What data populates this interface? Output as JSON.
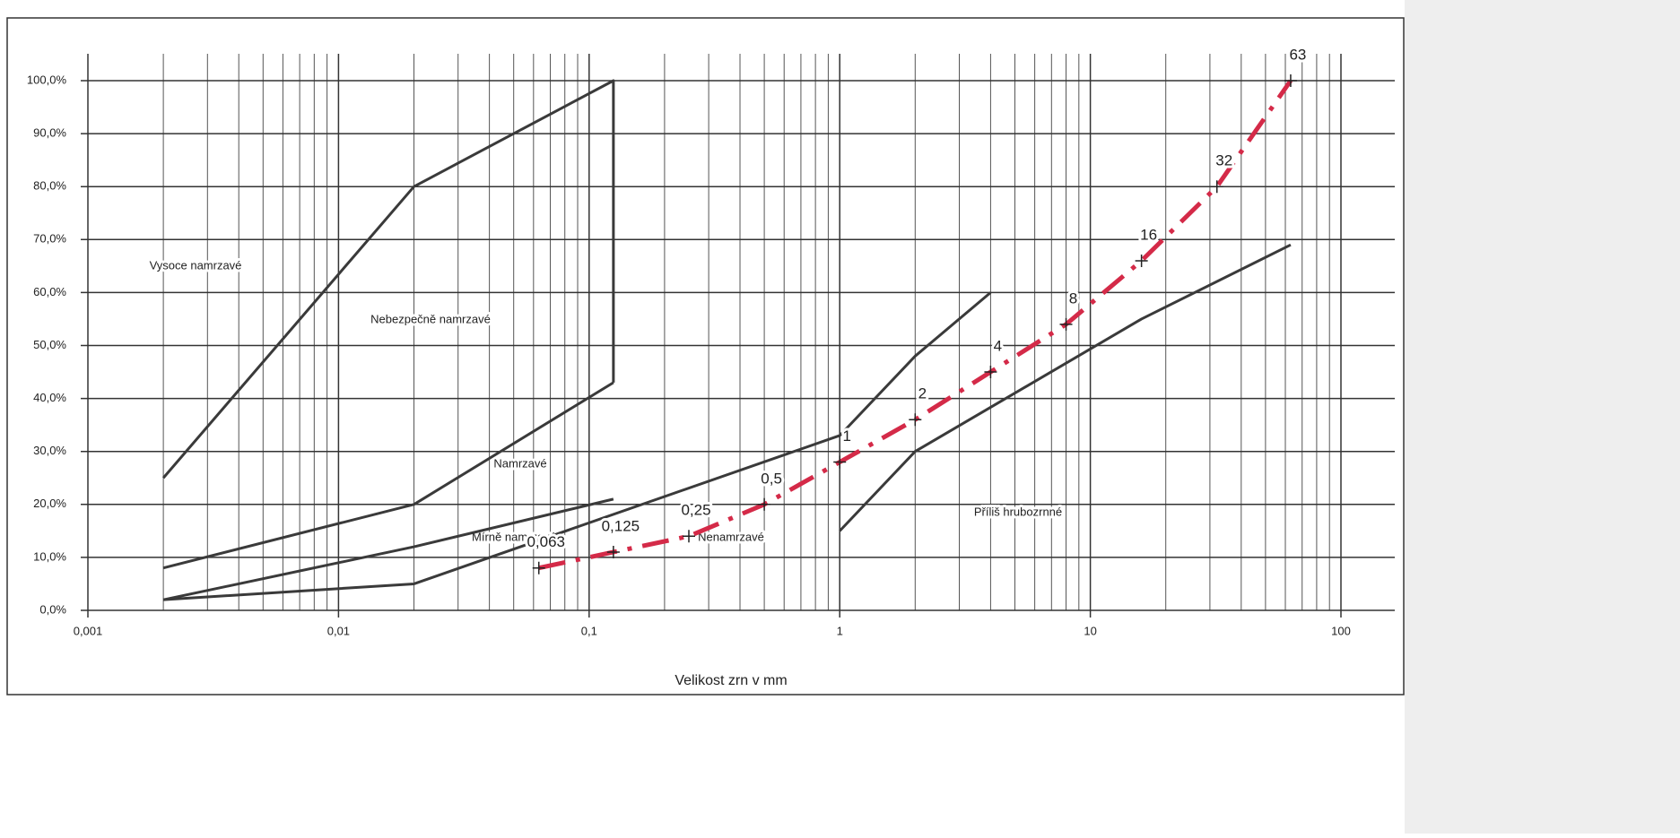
{
  "chart_data": {
    "type": "line",
    "xlabel": "Velikost zrn v mm",
    "xscale": "log",
    "xlim": [
      0.001,
      100
    ],
    "xticks": [
      {
        "value": 0.001,
        "label": "0,001"
      },
      {
        "value": 0.01,
        "label": "0,01"
      },
      {
        "value": 0.1,
        "label": "0,1"
      },
      1,
      10,
      100
    ],
    "ylim": [
      0,
      100
    ],
    "yticks": [
      {
        "value": 0,
        "label": "0,0%"
      },
      {
        "value": 10,
        "label": "10,0%"
      },
      {
        "value": 20,
        "label": "20,0%"
      },
      {
        "value": 30,
        "label": "30,0%"
      },
      {
        "value": 40,
        "label": "40,0%"
      },
      {
        "value": 50,
        "label": "50,0%"
      },
      {
        "value": 60,
        "label": "60,0%"
      },
      {
        "value": 70,
        "label": "70,0%"
      },
      {
        "value": 80,
        "label": "80,0%"
      },
      {
        "value": 90,
        "label": "90,0%"
      },
      {
        "value": 100,
        "label": "100,0%"
      }
    ],
    "grid": true,
    "minor_grid": true,
    "annotations": [
      "Vysoce namrzavé",
      "Nebezpečně namrzavé",
      "Namrzavé",
      "Mírně namrzavé",
      "Nenamrzavé",
      "Příliš hrubozrnné"
    ],
    "series": [
      {
        "color": "#3a3a3a",
        "style": "solid",
        "x": [
          0.002,
          0.02,
          0.125,
          0.125
        ],
        "values": [
          25,
          80,
          100,
          43
        ]
      },
      {
        "color": "#3a3a3a",
        "style": "solid",
        "x": [
          0.002,
          0.02,
          0.125
        ],
        "values": [
          8,
          20,
          43
        ]
      },
      {
        "color": "#3a3a3a",
        "style": "solid",
        "x": [
          0.002,
          0.02,
          0.125
        ],
        "values": [
          2,
          12,
          21
        ]
      },
      {
        "color": "#3a3a3a",
        "style": "solid",
        "x": [
          0.002,
          0.02,
          1,
          2,
          4
        ],
        "values": [
          2,
          5,
          33,
          48,
          60
        ]
      },
      {
        "color": "#3a3a3a",
        "style": "solid",
        "x": [
          1,
          2,
          16,
          63
        ],
        "values": [
          15,
          30,
          55,
          69
        ]
      },
      {
        "color": "#d42a48",
        "style": "dashdot",
        "markers": true,
        "x": [
          0.063,
          0.125,
          0.25,
          0.5,
          1,
          2,
          4,
          8,
          16,
          32,
          63
        ],
        "values": [
          8,
          11,
          14,
          20,
          28,
          36,
          45,
          54,
          66,
          80,
          100
        ],
        "point_labels": [
          "0,063",
          "0,125",
          "0,25",
          "0,5",
          "1",
          "2",
          "4",
          "8",
          "16",
          "32",
          "63"
        ]
      }
    ]
  }
}
